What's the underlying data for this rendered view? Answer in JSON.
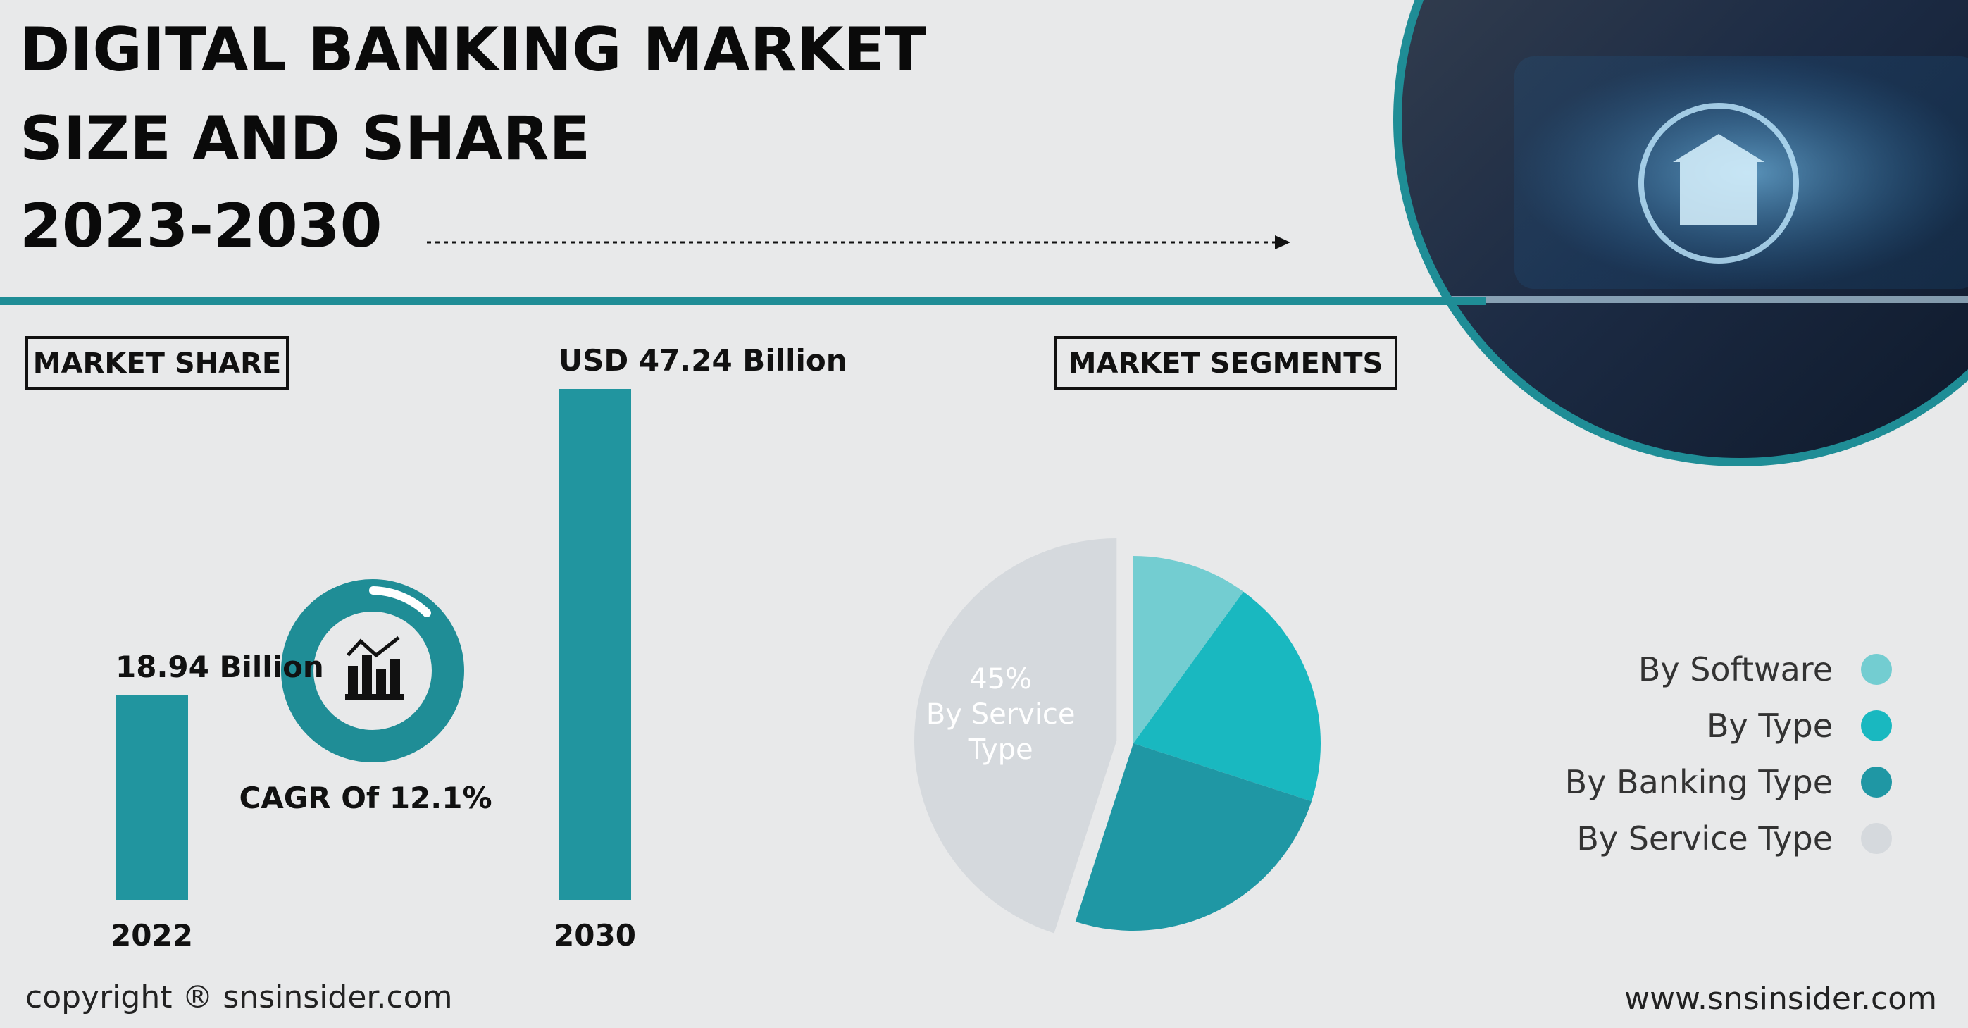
{
  "header": {
    "title_lines": [
      "DIGITAL BANKING MARKET",
      "SIZE AND SHARE",
      "2023-2030"
    ]
  },
  "market_share_label": "MARKET SHARE",
  "market_segments_label": "MARKET SEGMENTS",
  "cagr": "CAGR Of 12.1%",
  "chart_data": [
    {
      "type": "bar",
      "categories": [
        "2022",
        "2030"
      ],
      "values": [
        18.94,
        47.24
      ],
      "value_labels": [
        "18.94 Billion",
        "USD 47.24 Billion"
      ],
      "color": "#21959f"
    },
    {
      "type": "pie",
      "categories": [
        "By Software",
        "By Type",
        "By Banking Type",
        "By Service Type"
      ],
      "values": [
        10,
        20,
        25,
        45
      ],
      "value_labels": [
        null,
        null,
        null,
        "45%"
      ],
      "colors": [
        "#73cdd1",
        "#19b8c0",
        "#1f97a4",
        "#d5d9dd"
      ],
      "exploded": [
        false,
        false,
        false,
        true
      ]
    }
  ],
  "footer": {
    "copyright": "copyright ® snsinsider.com",
    "website": "www.snsinsider.com"
  }
}
